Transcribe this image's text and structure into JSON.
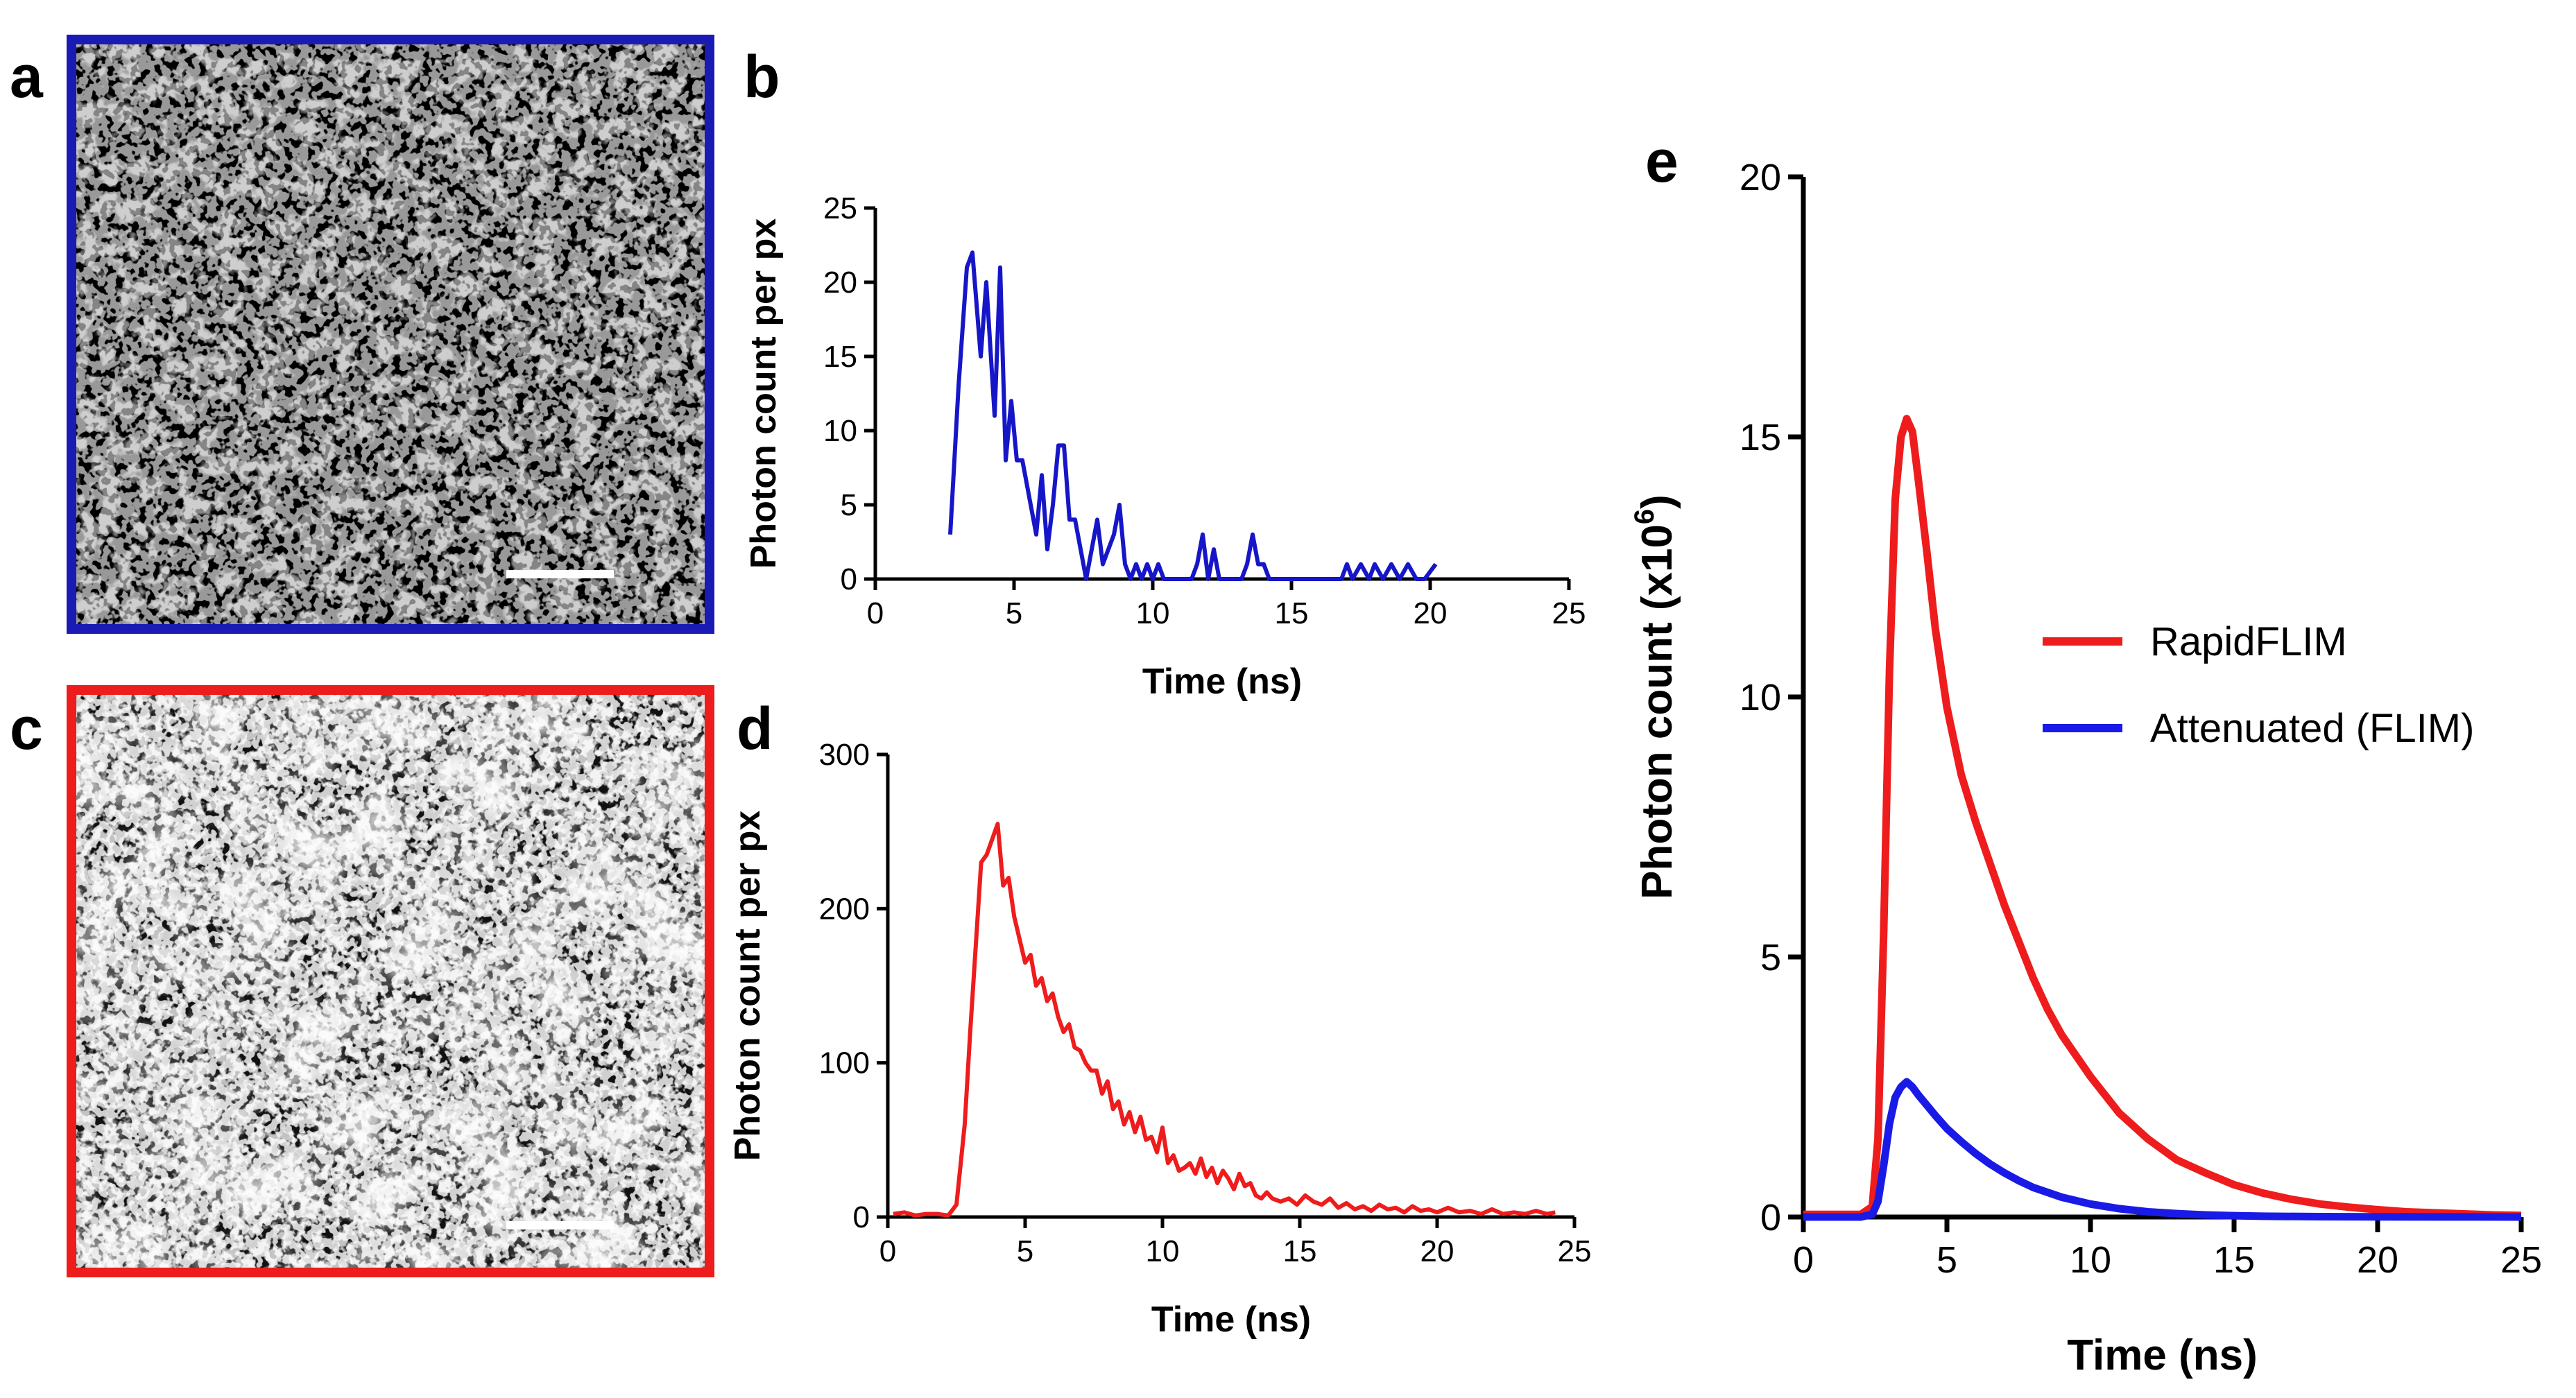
{
  "panels": {
    "a": {
      "letter": "a"
    },
    "b": {
      "letter": "b"
    },
    "c": {
      "letter": "c"
    },
    "d": {
      "letter": "d"
    },
    "e": {
      "letter": "e"
    }
  },
  "images": {
    "a": {
      "frame_color": "#1a1ab4",
      "description_kind": "dim microscopy image"
    },
    "c": {
      "frame_color": "#ee1c1c",
      "description_kind": "bright microscopy image"
    }
  },
  "chart_data": [
    {
      "panel": "b",
      "type": "line",
      "xlabel": "Time (ns)",
      "ylabel": "Photon count per px",
      "xlim": [
        0,
        25
      ],
      "ylim": [
        0,
        25
      ],
      "xticks": [
        0,
        5,
        10,
        15,
        20,
        25
      ],
      "yticks": [
        0,
        5,
        10,
        15,
        20,
        25
      ],
      "series": [
        {
          "color": "#1616c8",
          "x": [
            2.7,
            3.0,
            3.3,
            3.5,
            3.8,
            4.0,
            4.3,
            4.5,
            4.7,
            4.9,
            5.1,
            5.3,
            5.5,
            5.8,
            6.0,
            6.2,
            6.4,
            6.6,
            6.8,
            7.0,
            7.2,
            7.4,
            7.6,
            7.8,
            8.0,
            8.2,
            8.4,
            8.6,
            8.8,
            9.0,
            9.2,
            9.4,
            9.6,
            9.8,
            10.0,
            10.2,
            10.4,
            10.6,
            10.8,
            11.0,
            11.2,
            11.4,
            11.6,
            11.8,
            12.0,
            12.2,
            12.4,
            12.6,
            12.8,
            13.0,
            13.2,
            13.4,
            13.6,
            13.8,
            14.0,
            14.2,
            14.4,
            14.6,
            14.8,
            15.0,
            15.5,
            16.0,
            16.5,
            16.8,
            17.0,
            17.2,
            17.5,
            17.8,
            18.0,
            18.3,
            18.6,
            18.9,
            19.2,
            19.5,
            19.8,
            20.2
          ],
          "y": [
            3,
            13,
            21,
            22,
            15,
            20,
            11,
            21,
            8,
            12,
            8,
            8,
            6,
            3,
            7,
            2,
            5,
            9,
            9,
            4,
            4,
            2,
            0,
            2,
            4,
            1,
            2,
            3,
            5,
            1,
            0,
            1,
            0,
            1,
            0,
            1,
            0,
            0,
            0,
            0,
            0,
            0,
            1,
            3,
            0,
            2,
            0,
            0,
            0,
            0,
            0,
            1,
            3,
            1,
            1,
            0,
            0,
            0,
            0,
            0,
            0,
            0,
            0,
            0,
            1,
            0,
            1,
            0,
            1,
            0,
            1,
            0,
            1,
            0,
            0,
            1
          ]
        }
      ]
    },
    {
      "panel": "d",
      "type": "line",
      "xlabel": "Time (ns)",
      "ylabel": "Photon count per px",
      "xlim": [
        0,
        25
      ],
      "ylim": [
        0,
        300
      ],
      "xticks": [
        0,
        5,
        10,
        15,
        20,
        25
      ],
      "yticks": [
        0,
        100,
        200,
        300
      ],
      "series": [
        {
          "color": "#ee1c1c",
          "x": [
            0.2,
            0.6,
            1.0,
            1.4,
            1.8,
            2.2,
            2.5,
            2.8,
            3.0,
            3.2,
            3.4,
            3.6,
            3.8,
            4.0,
            4.2,
            4.4,
            4.6,
            4.8,
            5.0,
            5.2,
            5.4,
            5.6,
            5.8,
            6.0,
            6.2,
            6.4,
            6.6,
            6.8,
            7.0,
            7.2,
            7.4,
            7.6,
            7.8,
            8.0,
            8.2,
            8.4,
            8.6,
            8.8,
            9.0,
            9.2,
            9.4,
            9.6,
            9.8,
            10.0,
            10.2,
            10.4,
            10.6,
            10.8,
            11.0,
            11.2,
            11.4,
            11.6,
            11.8,
            12.0,
            12.2,
            12.4,
            12.6,
            12.8,
            13.0,
            13.2,
            13.4,
            13.6,
            13.8,
            14.0,
            14.3,
            14.6,
            14.9,
            15.2,
            15.5,
            15.8,
            16.1,
            16.4,
            16.7,
            17.0,
            17.3,
            17.6,
            17.9,
            18.2,
            18.5,
            18.8,
            19.1,
            19.4,
            19.7,
            20.0,
            20.4,
            20.8,
            21.2,
            21.6,
            22.0,
            22.4,
            22.8,
            23.2,
            23.6,
            24.0,
            24.3
          ],
          "y": [
            2,
            3,
            1,
            2,
            2,
            1,
            8,
            60,
            120,
            175,
            230,
            235,
            245,
            255,
            215,
            220,
            195,
            180,
            165,
            170,
            150,
            155,
            140,
            145,
            130,
            120,
            125,
            110,
            108,
            100,
            95,
            95,
            80,
            88,
            70,
            75,
            60,
            68,
            55,
            65,
            50,
            52,
            42,
            58,
            35,
            40,
            30,
            32,
            35,
            28,
            38,
            26,
            32,
            22,
            30,
            25,
            18,
            28,
            20,
            22,
            14,
            12,
            16,
            12,
            10,
            12,
            8,
            14,
            10,
            8,
            12,
            6,
            9,
            5,
            7,
            4,
            8,
            5,
            6,
            3,
            7,
            4,
            5,
            3,
            6,
            3,
            4,
            2,
            5,
            2,
            3,
            2,
            4,
            2,
            3
          ]
        }
      ]
    },
    {
      "panel": "e",
      "type": "line",
      "xlabel": "Time (ns)",
      "ylabel": "Photon count (x10",
      "ylabel_sup": "6",
      "ylabel_end": ")",
      "xlim": [
        0,
        25
      ],
      "ylim": [
        0,
        20
      ],
      "xticks": [
        0,
        5,
        10,
        15,
        20,
        25
      ],
      "yticks": [
        0,
        5,
        10,
        15,
        20
      ],
      "legend": "right",
      "series": [
        {
          "name": "RapidFLIM",
          "color": "#ee1c1c",
          "x": [
            0,
            1.0,
            2.0,
            2.4,
            2.6,
            2.8,
            3.0,
            3.2,
            3.4,
            3.6,
            3.8,
            4.0,
            4.3,
            4.6,
            5.0,
            5.5,
            6.0,
            6.5,
            7.0,
            7.5,
            8.0,
            8.5,
            9.0,
            10.0,
            11.0,
            12.0,
            13.0,
            14.0,
            15.0,
            16.0,
            17.0,
            18.0,
            19.0,
            20.0,
            21.0,
            22.0,
            23.0,
            24.0,
            25.0
          ],
          "y": [
            0.05,
            0.05,
            0.05,
            0.2,
            1.5,
            5.5,
            10.5,
            13.8,
            15.0,
            15.35,
            15.1,
            14.2,
            12.8,
            11.3,
            9.8,
            8.5,
            7.6,
            6.8,
            6.0,
            5.3,
            4.6,
            4.0,
            3.5,
            2.7,
            2.0,
            1.5,
            1.1,
            0.85,
            0.62,
            0.46,
            0.34,
            0.25,
            0.19,
            0.14,
            0.1,
            0.08,
            0.06,
            0.04,
            0.03
          ]
        },
        {
          "name": "Attenuated (FLIM)",
          "color": "#1a1ae6",
          "x": [
            0,
            1.0,
            2.0,
            2.4,
            2.6,
            2.8,
            3.0,
            3.2,
            3.4,
            3.6,
            3.8,
            4.0,
            4.3,
            4.6,
            5.0,
            5.5,
            6.0,
            6.5,
            7.0,
            7.5,
            8.0,
            9.0,
            10.0,
            11.0,
            12.0,
            13.0,
            14.0,
            15.0,
            16.0,
            18.0,
            20.0,
            22.0,
            25.0
          ],
          "y": [
            0.0,
            0.0,
            0.0,
            0.05,
            0.3,
            1.0,
            1.8,
            2.3,
            2.5,
            2.6,
            2.5,
            2.35,
            2.15,
            1.95,
            1.7,
            1.45,
            1.22,
            1.02,
            0.85,
            0.7,
            0.57,
            0.38,
            0.25,
            0.16,
            0.1,
            0.065,
            0.04,
            0.025,
            0.015,
            0.006,
            0.002,
            0.001,
            0.0
          ]
        }
      ]
    }
  ]
}
